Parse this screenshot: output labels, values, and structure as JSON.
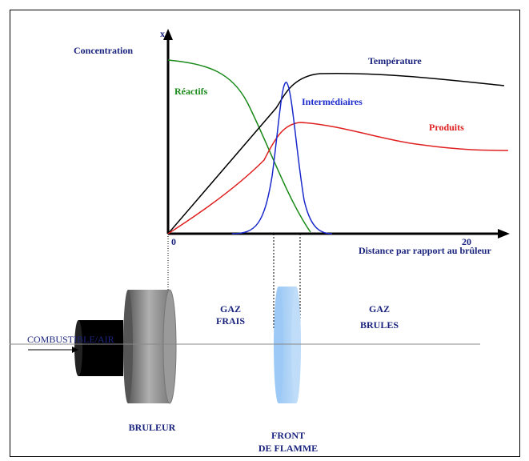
{
  "graph": {
    "y_axis_label": "x",
    "y_axis_title": "Concentration",
    "x_axis_title": "Distance par rapport au brûleur",
    "x_tick_start": "0",
    "x_tick_end": "20",
    "curves": [
      {
        "label": "Température"
      },
      {
        "label": "Réactifs"
      },
      {
        "label": "Intermédiaires"
      },
      {
        "label": "Produits"
      }
    ]
  },
  "setup": {
    "inlet": "COMBUSTIBLE/AIR",
    "burner": "BRULEUR",
    "fresh_gas": [
      "GAZ",
      "FRAIS"
    ],
    "burnt_gas": [
      "GAZ",
      "BRULES"
    ],
    "flame_front": [
      "FRONT",
      "DE FLAMME"
    ]
  }
}
